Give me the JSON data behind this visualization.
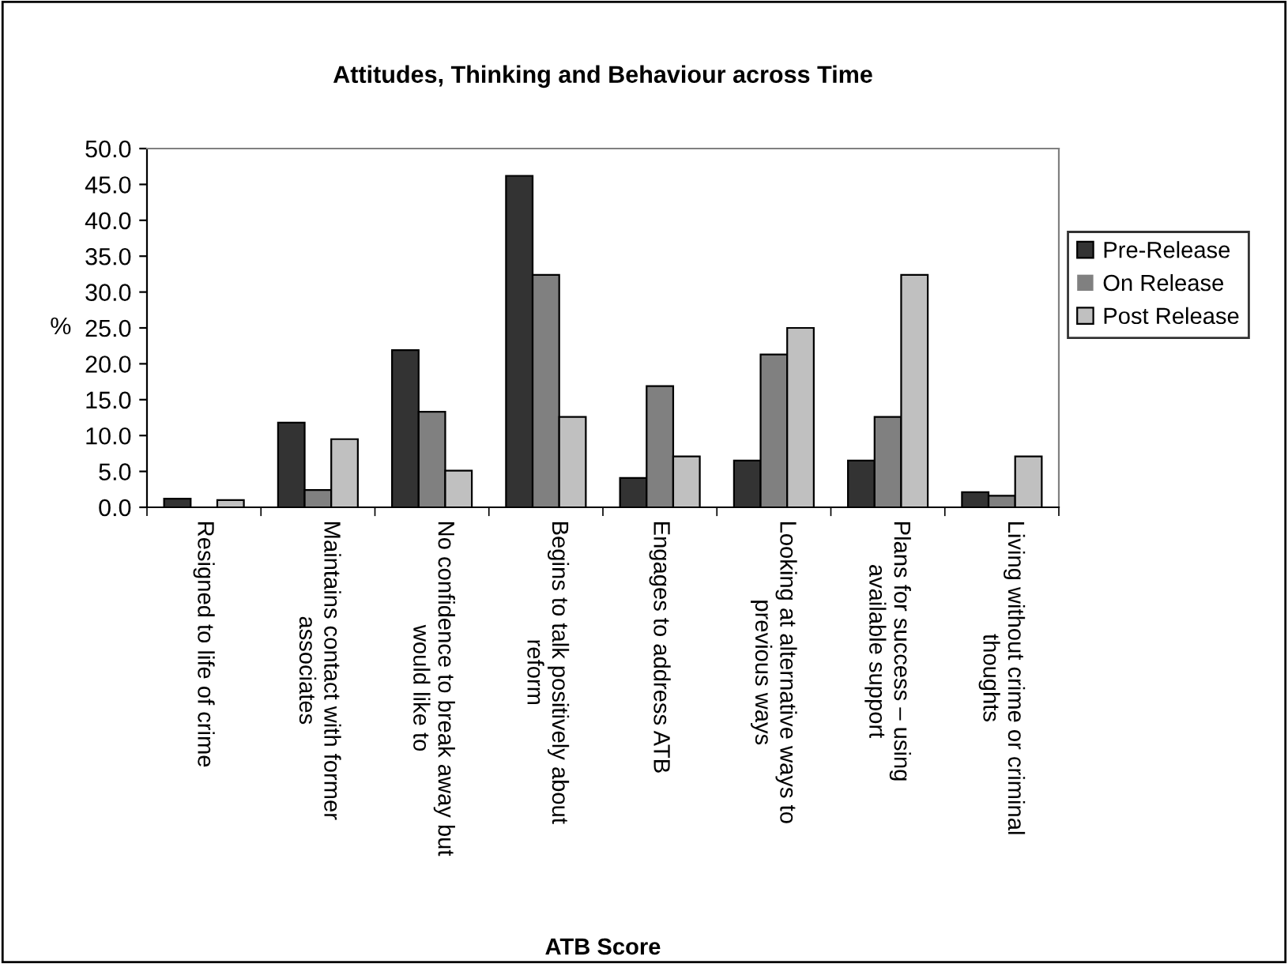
{
  "chart_data": {
    "type": "bar",
    "title": "Attitudes, Thinking and Behaviour across Time",
    "xlabel": "ATB Score",
    "ylabel": "%",
    "categories": [
      "Resigned to life of crime",
      "Maintains contact with former\nassociates",
      "No confidence to break away but\nwould like to",
      "Begins to talk positively about\nreform",
      "Engages to address ATB",
      "Looking at alternative ways to\nprevious ways",
      "Plans for success – using\navailable support",
      "Living without crime or criminal\nthoughts"
    ],
    "series": [
      {
        "name": "Pre-Release",
        "color": "#333333",
        "values": [
          1.2,
          11.8,
          21.9,
          46.2,
          4.1,
          6.5,
          6.5,
          2.1
        ]
      },
      {
        "name": "On Release",
        "color": "#808080",
        "values": [
          0,
          2.4,
          13.3,
          32.4,
          16.9,
          21.3,
          12.6,
          1.6
        ]
      },
      {
        "name": "Post Release",
        "color": "#c0c0c0",
        "values": [
          1.0,
          9.5,
          5.1,
          12.6,
          7.1,
          25.0,
          32.4,
          7.1
        ]
      }
    ],
    "ylim": [
      0,
      50
    ],
    "yticks": [
      {
        "value": 0,
        "label": "0.0"
      },
      {
        "value": 5,
        "label": "5.0"
      },
      {
        "value": 10,
        "label": "10.0"
      },
      {
        "value": 15,
        "label": "15.0"
      },
      {
        "value": 20,
        "label": "20.0"
      },
      {
        "value": 25,
        "label": "25.0"
      },
      {
        "value": 30,
        "label": "30.0"
      },
      {
        "value": 35,
        "label": "35.0"
      },
      {
        "value": 40,
        "label": "40.0"
      },
      {
        "value": 45,
        "label": "45.0"
      },
      {
        "value": 50,
        "label": "50.0"
      }
    ],
    "legend": "right",
    "grid": false
  }
}
